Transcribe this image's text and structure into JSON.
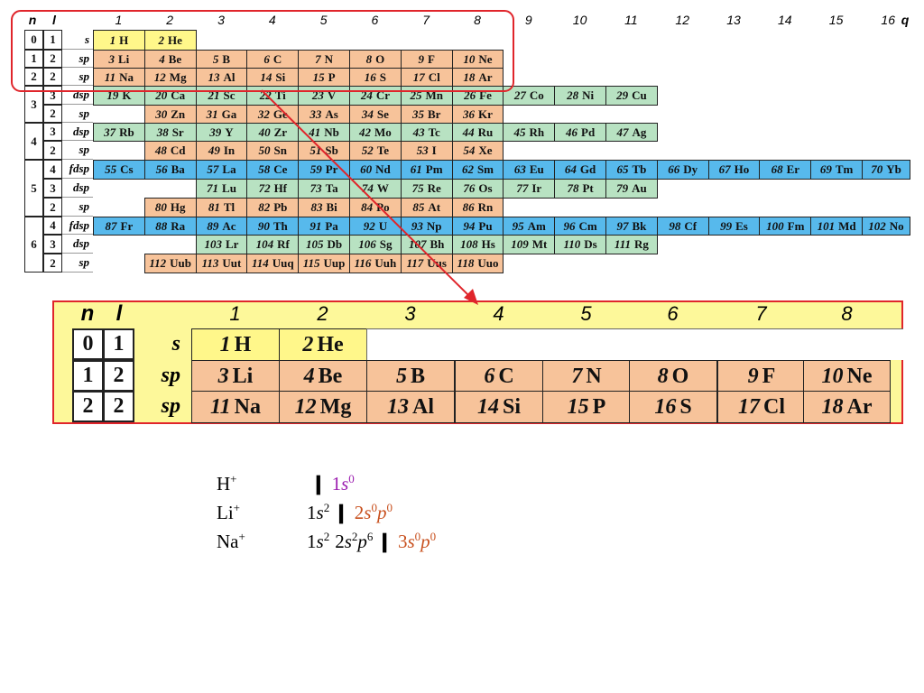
{
  "colors": {
    "s": "#fff78a",
    "p": "#f7c39a",
    "d": "#b8e2c2",
    "f": "#57b9ec",
    "zoomBg": "#fdf89a",
    "highlight": "#e0252b"
  },
  "table": {
    "header": {
      "n": "n",
      "l": "l",
      "q": "q",
      "columns": [
        "1",
        "2",
        "3",
        "4",
        "5",
        "6",
        "7",
        "8",
        "9",
        "10",
        "11",
        "12",
        "13",
        "14",
        "15",
        "16"
      ]
    },
    "rows": [
      {
        "n": "0",
        "l": "1",
        "sub": "s",
        "elements": [
          {
            "z": "1",
            "sym": "H",
            "blk": "s"
          },
          {
            "z": "2",
            "sym": "He",
            "blk": "s"
          }
        ]
      },
      {
        "n": "1",
        "l": "2",
        "sub": "sp",
        "elements": [
          {
            "z": "3",
            "sym": "Li",
            "blk": "p"
          },
          {
            "z": "4",
            "sym": "Be",
            "blk": "p"
          },
          {
            "z": "5",
            "sym": "B",
            "blk": "p"
          },
          {
            "z": "6",
            "sym": "C",
            "blk": "p"
          },
          {
            "z": "7",
            "sym": "N",
            "blk": "p"
          },
          {
            "z": "8",
            "sym": "O",
            "blk": "p"
          },
          {
            "z": "9",
            "sym": "F",
            "blk": "p"
          },
          {
            "z": "10",
            "sym": "Ne",
            "blk": "p"
          }
        ]
      },
      {
        "n": "2",
        "l": "2",
        "sub": "sp",
        "elements": [
          {
            "z": "11",
            "sym": "Na",
            "blk": "p"
          },
          {
            "z": "12",
            "sym": "Mg",
            "blk": "p"
          },
          {
            "z": "13",
            "sym": "Al",
            "blk": "p"
          },
          {
            "z": "14",
            "sym": "Si",
            "blk": "p"
          },
          {
            "z": "15",
            "sym": "P",
            "blk": "p"
          },
          {
            "z": "16",
            "sym": "S",
            "blk": "p"
          },
          {
            "z": "17",
            "sym": "Cl",
            "blk": "p"
          },
          {
            "z": "18",
            "sym": "Ar",
            "blk": "p"
          }
        ]
      },
      {
        "n": "3",
        "l": "3",
        "sub": "dsp",
        "elements": [
          {
            "z": "19",
            "sym": "K",
            "blk": "d"
          },
          {
            "z": "20",
            "sym": "Ca",
            "blk": "d"
          },
          {
            "z": "21",
            "sym": "Sc",
            "blk": "d"
          },
          {
            "z": "22",
            "sym": "Ti",
            "blk": "d"
          },
          {
            "z": "23",
            "sym": "V",
            "blk": "d"
          },
          {
            "z": "24",
            "sym": "Cr",
            "blk": "d"
          },
          {
            "z": "25",
            "sym": "Mn",
            "blk": "d"
          },
          {
            "z": "26",
            "sym": "Fe",
            "blk": "d"
          },
          {
            "z": "27",
            "sym": "Co",
            "blk": "d"
          },
          {
            "z": "28",
            "sym": "Ni",
            "blk": "d"
          },
          {
            "z": "29",
            "sym": "Cu",
            "blk": "d"
          }
        ]
      },
      {
        "n": "",
        "l": "2",
        "sub": "sp",
        "elements": [
          {
            "z": "30",
            "sym": "Zn",
            "blk": "p"
          },
          {
            "z": "31",
            "sym": "Ga",
            "blk": "p"
          },
          {
            "z": "32",
            "sym": "Ge",
            "blk": "p"
          },
          {
            "z": "33",
            "sym": "As",
            "blk": "p"
          },
          {
            "z": "34",
            "sym": "Se",
            "blk": "p"
          },
          {
            "z": "35",
            "sym": "Br",
            "blk": "p"
          },
          {
            "z": "36",
            "sym": "Kr",
            "blk": "p"
          }
        ]
      },
      {
        "n": "4",
        "l": "3",
        "sub": "dsp",
        "elements": [
          {
            "z": "37",
            "sym": "Rb",
            "blk": "d"
          },
          {
            "z": "38",
            "sym": "Sr",
            "blk": "d"
          },
          {
            "z": "39",
            "sym": "Y",
            "blk": "d"
          },
          {
            "z": "40",
            "sym": "Zr",
            "blk": "d"
          },
          {
            "z": "41",
            "sym": "Nb",
            "blk": "d"
          },
          {
            "z": "42",
            "sym": "Mo",
            "blk": "d"
          },
          {
            "z": "43",
            "sym": "Tc",
            "blk": "d"
          },
          {
            "z": "44",
            "sym": "Ru",
            "blk": "d"
          },
          {
            "z": "45",
            "sym": "Rh",
            "blk": "d"
          },
          {
            "z": "46",
            "sym": "Pd",
            "blk": "d"
          },
          {
            "z": "47",
            "sym": "Ag",
            "blk": "d"
          }
        ]
      },
      {
        "n": "",
        "l": "2",
        "sub": "sp",
        "elements": [
          {
            "z": "48",
            "sym": "Cd",
            "blk": "p"
          },
          {
            "z": "49",
            "sym": "In",
            "blk": "p"
          },
          {
            "z": "50",
            "sym": "Sn",
            "blk": "p"
          },
          {
            "z": "51",
            "sym": "Sb",
            "blk": "p"
          },
          {
            "z": "52",
            "sym": "Te",
            "blk": "p"
          },
          {
            "z": "53",
            "sym": "I",
            "blk": "p"
          },
          {
            "z": "54",
            "sym": "Xe",
            "blk": "p"
          }
        ]
      },
      {
        "n": "5",
        "l": "4",
        "sub": "fdsp",
        "elements": [
          {
            "z": "55",
            "sym": "Cs",
            "blk": "f"
          },
          {
            "z": "56",
            "sym": "Ba",
            "blk": "f"
          },
          {
            "z": "57",
            "sym": "La",
            "blk": "f"
          },
          {
            "z": "58",
            "sym": "Ce",
            "blk": "f"
          },
          {
            "z": "59",
            "sym": "Pr",
            "blk": "f"
          },
          {
            "z": "60",
            "sym": "Nd",
            "blk": "f"
          },
          {
            "z": "61",
            "sym": "Pm",
            "blk": "f"
          },
          {
            "z": "62",
            "sym": "Sm",
            "blk": "f"
          },
          {
            "z": "63",
            "sym": "Eu",
            "blk": "f"
          },
          {
            "z": "64",
            "sym": "Gd",
            "blk": "f"
          },
          {
            "z": "65",
            "sym": "Tb",
            "blk": "f"
          },
          {
            "z": "66",
            "sym": "Dy",
            "blk": "f"
          },
          {
            "z": "67",
            "sym": "Ho",
            "blk": "f"
          },
          {
            "z": "68",
            "sym": "Er",
            "blk": "f"
          },
          {
            "z": "69",
            "sym": "Tm",
            "blk": "f"
          },
          {
            "z": "70",
            "sym": "Yb",
            "blk": "f"
          }
        ]
      },
      {
        "n": "",
        "l": "3",
        "sub": "dsp",
        "elements": [
          {
            "z": "71",
            "sym": "Lu",
            "blk": "d"
          },
          {
            "z": "72",
            "sym": "Hf",
            "blk": "d"
          },
          {
            "z": "73",
            "sym": "Ta",
            "blk": "d"
          },
          {
            "z": "74",
            "sym": "W",
            "blk": "d"
          },
          {
            "z": "75",
            "sym": "Re",
            "blk": "d"
          },
          {
            "z": "76",
            "sym": "Os",
            "blk": "d"
          },
          {
            "z": "77",
            "sym": "Ir",
            "blk": "d"
          },
          {
            "z": "78",
            "sym": "Pt",
            "blk": "d"
          },
          {
            "z": "79",
            "sym": "Au",
            "blk": "d"
          }
        ]
      },
      {
        "n": "",
        "l": "2",
        "sub": "sp",
        "elements": [
          {
            "z": "80",
            "sym": "Hg",
            "blk": "p"
          },
          {
            "z": "81",
            "sym": "Tl",
            "blk": "p"
          },
          {
            "z": "82",
            "sym": "Pb",
            "blk": "p"
          },
          {
            "z": "83",
            "sym": "Bi",
            "blk": "p"
          },
          {
            "z": "84",
            "sym": "Po",
            "blk": "p"
          },
          {
            "z": "85",
            "sym": "At",
            "blk": "p"
          },
          {
            "z": "86",
            "sym": "Rn",
            "blk": "p"
          }
        ]
      },
      {
        "n": "6",
        "l": "4",
        "sub": "fdsp",
        "elements": [
          {
            "z": "87",
            "sym": "Fr",
            "blk": "f"
          },
          {
            "z": "88",
            "sym": "Ra",
            "blk": "f"
          },
          {
            "z": "89",
            "sym": "Ac",
            "blk": "f"
          },
          {
            "z": "90",
            "sym": "Th",
            "blk": "f"
          },
          {
            "z": "91",
            "sym": "Pa",
            "blk": "f"
          },
          {
            "z": "92",
            "sym": "U",
            "blk": "f"
          },
          {
            "z": "93",
            "sym": "Np",
            "blk": "f"
          },
          {
            "z": "94",
            "sym": "Pu",
            "blk": "f"
          },
          {
            "z": "95",
            "sym": "Am",
            "blk": "f"
          },
          {
            "z": "96",
            "sym": "Cm",
            "blk": "f"
          },
          {
            "z": "97",
            "sym": "Bk",
            "blk": "f"
          },
          {
            "z": "98",
            "sym": "Cf",
            "blk": "f"
          },
          {
            "z": "99",
            "sym": "Es",
            "blk": "f"
          },
          {
            "z": "100",
            "sym": "Fm",
            "blk": "f"
          },
          {
            "z": "101",
            "sym": "Md",
            "blk": "f"
          },
          {
            "z": "102",
            "sym": "No",
            "blk": "f"
          }
        ]
      },
      {
        "n": "",
        "l": "3",
        "sub": "dsp",
        "elements": [
          {
            "z": "103",
            "sym": "Lr",
            "blk": "d"
          },
          {
            "z": "104",
            "sym": "Rf",
            "blk": "d"
          },
          {
            "z": "105",
            "sym": "Db",
            "blk": "d"
          },
          {
            "z": "106",
            "sym": "Sg",
            "blk": "d"
          },
          {
            "z": "107",
            "sym": "Bh",
            "blk": "d"
          },
          {
            "z": "108",
            "sym": "Hs",
            "blk": "d"
          },
          {
            "z": "109",
            "sym": "Mt",
            "blk": "d"
          },
          {
            "z": "110",
            "sym": "Ds",
            "blk": "d"
          },
          {
            "z": "111",
            "sym": "Rg",
            "blk": "d"
          }
        ]
      },
      {
        "n": "",
        "l": "2",
        "sub": "sp",
        "elements": [
          {
            "z": "112",
            "sym": "Uub",
            "blk": "p"
          },
          {
            "z": "113",
            "sym": "Uut",
            "blk": "p"
          },
          {
            "z": "114",
            "sym": "Uuq",
            "blk": "p"
          },
          {
            "z": "115",
            "sym": "Uup",
            "blk": "p"
          },
          {
            "z": "116",
            "sym": "Uuh",
            "blk": "p"
          },
          {
            "z": "117",
            "sym": "Uus",
            "blk": "p"
          },
          {
            "z": "118",
            "sym": "Uuo",
            "blk": "p"
          }
        ]
      }
    ]
  },
  "zoom": {
    "header": {
      "n": "n",
      "l": "l",
      "columns": [
        "1",
        "2",
        "3",
        "4",
        "5",
        "6",
        "7",
        "8"
      ]
    }
  },
  "ions": [
    {
      "name": "H",
      "charge": "+",
      "config": [
        {
          "t": "sep"
        },
        {
          "t": "orb",
          "n": "1",
          "l": "s",
          "e": "0",
          "cls": "purple"
        }
      ]
    },
    {
      "name": "Li",
      "charge": "+",
      "config": [
        {
          "t": "orb",
          "n": "1",
          "l": "s",
          "e": "2",
          "cls": ""
        },
        {
          "t": "sep"
        },
        {
          "t": "orb",
          "n": "2",
          "l": "s",
          "e": "0",
          "cls": "orange"
        },
        {
          "t": "orb2",
          "l": "p",
          "e": "0",
          "cls": "orange"
        }
      ]
    },
    {
      "name": "Na",
      "charge": "+",
      "config": [
        {
          "t": "orb",
          "n": "1",
          "l": "s",
          "e": "2",
          "cls": ""
        },
        {
          "t": "orb",
          "n": "2",
          "l": "s",
          "e": "2",
          "cls": ""
        },
        {
          "t": "orb2",
          "l": "p",
          "e": "6",
          "cls": ""
        },
        {
          "t": "sep"
        },
        {
          "t": "orb",
          "n": "3",
          "l": "s",
          "e": "0",
          "cls": "orange"
        },
        {
          "t": "orb2",
          "l": "p",
          "e": "0",
          "cls": "orange"
        }
      ]
    }
  ]
}
